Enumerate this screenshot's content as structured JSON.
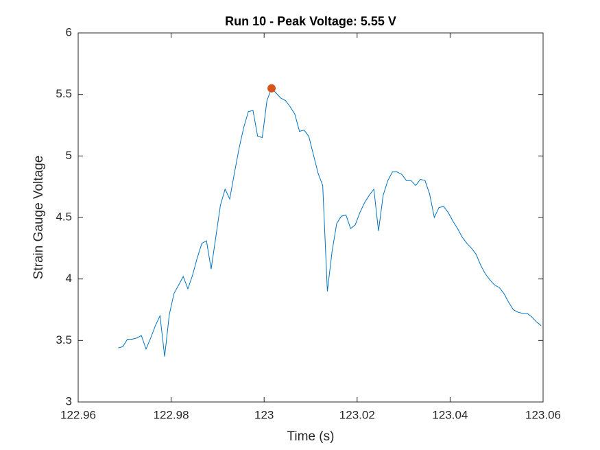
{
  "chart_data": {
    "type": "line",
    "title": "Run 10 - Peak Voltage: 5.55 V",
    "x_label": "Time (s)",
    "y_label": "Strain Gauge Voltage",
    "x": [
      122.9686,
      122.9696,
      122.9706,
      122.9716,
      122.9726,
      122.9736,
      122.9746,
      122.9756,
      122.9766,
      122.9776,
      122.9786,
      122.9796,
      122.9806,
      122.9816,
      122.9826,
      122.9836,
      122.9846,
      122.9856,
      122.9866,
      122.9876,
      122.9886,
      122.9896,
      122.9906,
      122.9916,
      122.9926,
      122.9936,
      122.9946,
      122.9956,
      122.9966,
      122.9976,
      122.9986,
      122.9996,
      123.0006,
      123.0016,
      123.0026,
      123.0036,
      123.0046,
      123.0056,
      123.0066,
      123.0076,
      123.0086,
      123.0096,
      123.0106,
      123.0116,
      123.0126,
      123.0136,
      123.0146,
      123.0156,
      123.0166,
      123.0176,
      123.0186,
      123.0196,
      123.0206,
      123.0216,
      123.0226,
      123.0236,
      123.0246,
      123.0256,
      123.0266,
      123.0276,
      123.0286,
      123.0296,
      123.0306,
      123.0316,
      123.0326,
      123.0336,
      123.0346,
      123.0356,
      123.0366,
      123.0376,
      123.0386,
      123.0396,
      123.0406,
      123.0416,
      123.0426,
      123.0436,
      123.0446,
      123.0456,
      123.0466,
      123.0476,
      123.0486,
      123.0496,
      123.0506,
      123.0516,
      123.0526,
      123.0536,
      123.0546,
      123.0556,
      123.0566,
      123.0576,
      123.0586,
      123.0596
    ],
    "series": [
      {
        "color": "#0072bd",
        "values": [
          3.44,
          3.45,
          3.51,
          3.51,
          3.52,
          3.54,
          3.43,
          3.52,
          3.62,
          3.7,
          3.37,
          3.71,
          3.88,
          3.95,
          4.02,
          3.92,
          4.03,
          4.17,
          4.29,
          4.31,
          4.08,
          4.34,
          4.6,
          4.73,
          4.65,
          4.86,
          5.06,
          5.23,
          5.36,
          5.37,
          5.16,
          5.15,
          5.45,
          5.55,
          5.51,
          5.47,
          5.45,
          5.4,
          5.34,
          5.2,
          5.21,
          5.16,
          5.01,
          4.86,
          4.76,
          3.9,
          4.22,
          4.45,
          4.51,
          4.52,
          4.41,
          4.44,
          4.54,
          4.62,
          4.68,
          4.73,
          4.39,
          4.68,
          4.8,
          4.87,
          4.87,
          4.85,
          4.8,
          4.8,
          4.76,
          4.81,
          4.8,
          4.69,
          4.5,
          4.58,
          4.59,
          4.54,
          4.47,
          4.41,
          4.34,
          4.29,
          4.25,
          4.2,
          4.11,
          4.04,
          3.99,
          3.95,
          3.93,
          3.88,
          3.81,
          3.75,
          3.73,
          3.72,
          3.72,
          3.69,
          3.65,
          3.62
        ]
      }
    ],
    "peak": {
      "x": 123.0016,
      "y": 5.55,
      "color": "#d95319"
    },
    "xlim": [
      122.96,
      123.06
    ],
    "xticks": [
      122.96,
      122.98,
      123,
      123.02,
      123.04,
      123.06
    ],
    "ylim": [
      3,
      6
    ],
    "yticks": [
      3,
      3.5,
      4,
      4.5,
      5,
      5.5,
      6
    ]
  }
}
